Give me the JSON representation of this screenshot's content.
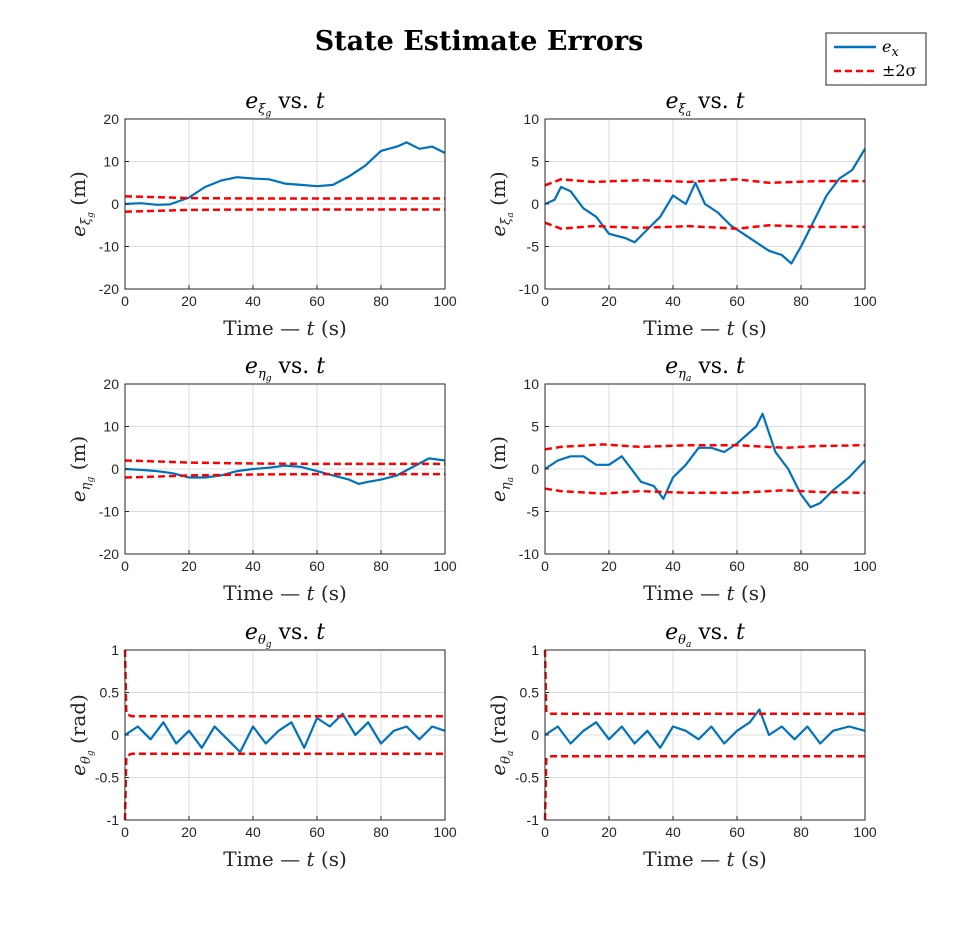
{
  "figure": {
    "title": "State Estimate Errors",
    "legend": {
      "placement": "top-right",
      "items": [
        "e_x",
        "±2σ"
      ]
    },
    "colors": {
      "error": "#0072BD",
      "bound": "#FF0000"
    }
  },
  "chart_data": [
    {
      "type": "line",
      "title": "e_ξg vs. t",
      "xlabel": "Time — t (s)",
      "ylabel": "e_ξg (m)",
      "xlim": [
        0,
        100
      ],
      "ylim": [
        -20,
        20
      ],
      "xticks": [
        0,
        20,
        40,
        60,
        80,
        100
      ],
      "yticks": [
        -20,
        -10,
        0,
        10,
        20
      ],
      "grid": true,
      "series": [
        {
          "name": "e_x",
          "style": "solid",
          "x": [
            0,
            5,
            10,
            14,
            20,
            25,
            30,
            35,
            40,
            45,
            50,
            55,
            60,
            65,
            70,
            75,
            80,
            85,
            88,
            92,
            96,
            100
          ],
          "y": [
            0,
            0.2,
            -0.2,
            -0.1,
            1.5,
            4,
            5.5,
            6.3,
            6,
            5.8,
            4.8,
            4.5,
            4.2,
            4.5,
            6.5,
            9,
            12.5,
            13.5,
            14.5,
            13,
            13.5,
            12
          ]
        },
        {
          "name": "+2σ",
          "style": "dashed",
          "x": [
            0,
            10,
            20,
            40,
            60,
            80,
            100
          ],
          "y": [
            1.8,
            1.6,
            1.4,
            1.3,
            1.3,
            1.3,
            1.3
          ]
        },
        {
          "name": "-2σ",
          "style": "dashed",
          "x": [
            0,
            10,
            20,
            40,
            60,
            80,
            100
          ],
          "y": [
            -1.8,
            -1.6,
            -1.4,
            -1.3,
            -1.3,
            -1.3,
            -1.3
          ]
        }
      ]
    },
    {
      "type": "line",
      "title": "e_ξa vs. t",
      "xlabel": "Time — t (s)",
      "ylabel": "e_ξa (m)",
      "xlim": [
        0,
        100
      ],
      "ylim": [
        -10,
        10
      ],
      "xticks": [
        0,
        20,
        40,
        60,
        80,
        100
      ],
      "yticks": [
        -10,
        -5,
        0,
        5,
        10
      ],
      "grid": true,
      "series": [
        {
          "name": "e_x",
          "style": "solid",
          "x": [
            0,
            3,
            5,
            8,
            12,
            16,
            20,
            25,
            28,
            32,
            36,
            40,
            44,
            47,
            50,
            54,
            58,
            62,
            66,
            70,
            74,
            77,
            80,
            84,
            88,
            92,
            96,
            100
          ],
          "y": [
            0,
            0.5,
            2,
            1.5,
            -0.5,
            -1.5,
            -3.5,
            -4,
            -4.5,
            -3,
            -1.5,
            1,
            0,
            2.5,
            0,
            -1,
            -2.5,
            -3.5,
            -4.5,
            -5.5,
            -6,
            -7,
            -5,
            -2,
            1,
            3,
            4,
            6.5
          ]
        },
        {
          "name": "+2σ",
          "style": "dashed",
          "x": [
            0,
            5,
            15,
            30,
            45,
            60,
            70,
            85,
            100
          ],
          "y": [
            2.2,
            2.9,
            2.6,
            2.8,
            2.6,
            2.9,
            2.5,
            2.7,
            2.7
          ]
        },
        {
          "name": "-2σ",
          "style": "dashed",
          "x": [
            0,
            5,
            15,
            30,
            45,
            60,
            70,
            85,
            100
          ],
          "y": [
            -2.2,
            -2.9,
            -2.6,
            -2.8,
            -2.6,
            -2.9,
            -2.5,
            -2.7,
            -2.7
          ]
        }
      ]
    },
    {
      "type": "line",
      "title": "e_ηg vs. t",
      "xlabel": "Time — t (s)",
      "ylabel": "e_ηg (m)",
      "xlim": [
        0,
        100
      ],
      "ylim": [
        -20,
        20
      ],
      "xticks": [
        0,
        20,
        40,
        60,
        80,
        100
      ],
      "yticks": [
        -20,
        -10,
        0,
        10,
        20
      ],
      "grid": true,
      "series": [
        {
          "name": "e_x",
          "style": "solid",
          "x": [
            0,
            5,
            10,
            15,
            20,
            25,
            30,
            35,
            40,
            45,
            50,
            55,
            60,
            65,
            70,
            73,
            76,
            80,
            85,
            90,
            95,
            100
          ],
          "y": [
            0,
            -0.2,
            -0.5,
            -1,
            -2,
            -2,
            -1.5,
            -0.5,
            0,
            0.3,
            0.8,
            0.5,
            -0.5,
            -1.5,
            -2.5,
            -3.5,
            -3,
            -2.5,
            -1.5,
            0.5,
            2.5,
            2
          ]
        },
        {
          "name": "+2σ",
          "style": "dashed",
          "x": [
            0,
            10,
            20,
            40,
            60,
            80,
            100
          ],
          "y": [
            2,
            1.8,
            1.5,
            1.3,
            1.2,
            1.2,
            1.2
          ]
        },
        {
          "name": "-2σ",
          "style": "dashed",
          "x": [
            0,
            10,
            20,
            40,
            60,
            80,
            100
          ],
          "y": [
            -2,
            -1.8,
            -1.5,
            -1.3,
            -1.2,
            -1.2,
            -1.2
          ]
        }
      ]
    },
    {
      "type": "line",
      "title": "e_ηa vs. t",
      "xlabel": "Time — t (s)",
      "ylabel": "e_ηa (m)",
      "xlim": [
        0,
        100
      ],
      "ylim": [
        -10,
        10
      ],
      "xticks": [
        0,
        20,
        40,
        60,
        80,
        100
      ],
      "yticks": [
        -10,
        -5,
        0,
        5,
        10
      ],
      "grid": true,
      "series": [
        {
          "name": "e_x",
          "style": "solid",
          "x": [
            0,
            4,
            8,
            12,
            16,
            20,
            24,
            27,
            30,
            34,
            37,
            40,
            44,
            48,
            52,
            56,
            60,
            63,
            66,
            68,
            72,
            76,
            80,
            83,
            86,
            90,
            95,
            100
          ],
          "y": [
            0,
            1,
            1.5,
            1.5,
            0.5,
            0.5,
            1.5,
            0,
            -1.5,
            -2,
            -3.5,
            -1,
            0.5,
            2.5,
            2.5,
            2,
            3,
            4,
            5,
            6.5,
            2,
            0,
            -3,
            -4.5,
            -4,
            -2.5,
            -1,
            1
          ]
        },
        {
          "name": "+2σ",
          "style": "dashed",
          "x": [
            0,
            5,
            18,
            30,
            45,
            60,
            75,
            85,
            100
          ],
          "y": [
            2.3,
            2.6,
            2.9,
            2.6,
            2.8,
            2.8,
            2.5,
            2.7,
            2.8
          ]
        },
        {
          "name": "-2σ",
          "style": "dashed",
          "x": [
            0,
            5,
            18,
            30,
            45,
            60,
            75,
            85,
            100
          ],
          "y": [
            -2.3,
            -2.6,
            -2.9,
            -2.6,
            -2.8,
            -2.8,
            -2.5,
            -2.7,
            -2.8
          ]
        }
      ]
    },
    {
      "type": "line",
      "title": "e_θg vs. t",
      "xlabel": "Time — t (s)",
      "ylabel": "e_θg (rad)",
      "xlim": [
        0,
        100
      ],
      "ylim": [
        -1,
        1
      ],
      "xticks": [
        0,
        20,
        40,
        60,
        80,
        100
      ],
      "yticks": [
        -1,
        -0.5,
        0,
        0.5,
        1
      ],
      "grid": true,
      "series": [
        {
          "name": "e_x",
          "style": "solid",
          "x": [
            0,
            4,
            8,
            12,
            16,
            20,
            24,
            28,
            32,
            36,
            40,
            44,
            48,
            52,
            56,
            60,
            64,
            68,
            72,
            76,
            80,
            84,
            88,
            92,
            96,
            100
          ],
          "y": [
            0,
            0.1,
            -0.05,
            0.15,
            -0.1,
            0.05,
            -0.15,
            0.1,
            -0.05,
            -0.2,
            0.1,
            -0.1,
            0.05,
            0.15,
            -0.15,
            0.2,
            0.1,
            0.25,
            0,
            0.15,
            -0.1,
            0.05,
            0.1,
            -0.05,
            0.1,
            0.05
          ]
        },
        {
          "name": "+2σ",
          "style": "dashed",
          "x": [
            0,
            0.4,
            2,
            100
          ],
          "y": [
            1,
            0.25,
            0.22,
            0.22
          ]
        },
        {
          "name": "-2σ",
          "style": "dashed",
          "x": [
            0,
            0.4,
            2,
            100
          ],
          "y": [
            -1,
            -0.25,
            -0.22,
            -0.22
          ]
        }
      ]
    },
    {
      "type": "line",
      "title": "e_θa vs. t",
      "xlabel": "Time — t (s)",
      "ylabel": "e_θa (rad)",
      "xlim": [
        0,
        100
      ],
      "ylim": [
        -1,
        1
      ],
      "xticks": [
        0,
        20,
        40,
        60,
        80,
        100
      ],
      "yticks": [
        -1,
        -0.5,
        0,
        0.5,
        1
      ],
      "grid": true,
      "series": [
        {
          "name": "e_x",
          "style": "solid",
          "x": [
            0,
            4,
            8,
            12,
            16,
            20,
            24,
            28,
            32,
            36,
            40,
            44,
            48,
            52,
            56,
            60,
            64,
            67,
            70,
            74,
            78,
            82,
            86,
            90,
            95,
            100
          ],
          "y": [
            0,
            0.1,
            -0.1,
            0.05,
            0.15,
            -0.05,
            0.1,
            -0.1,
            0.05,
            -0.15,
            0.1,
            0.05,
            -0.05,
            0.1,
            -0.1,
            0.05,
            0.15,
            0.3,
            0,
            0.1,
            -0.05,
            0.1,
            -0.1,
            0.05,
            0.1,
            0.05
          ]
        },
        {
          "name": "+2σ",
          "style": "dashed",
          "x": [
            0,
            0.4,
            2,
            100
          ],
          "y": [
            1,
            0.27,
            0.25,
            0.25
          ]
        },
        {
          "name": "-2σ",
          "style": "dashed",
          "x": [
            0,
            0.4,
            2,
            100
          ],
          "y": [
            -1,
            -0.27,
            -0.25,
            -0.25
          ]
        }
      ]
    }
  ]
}
